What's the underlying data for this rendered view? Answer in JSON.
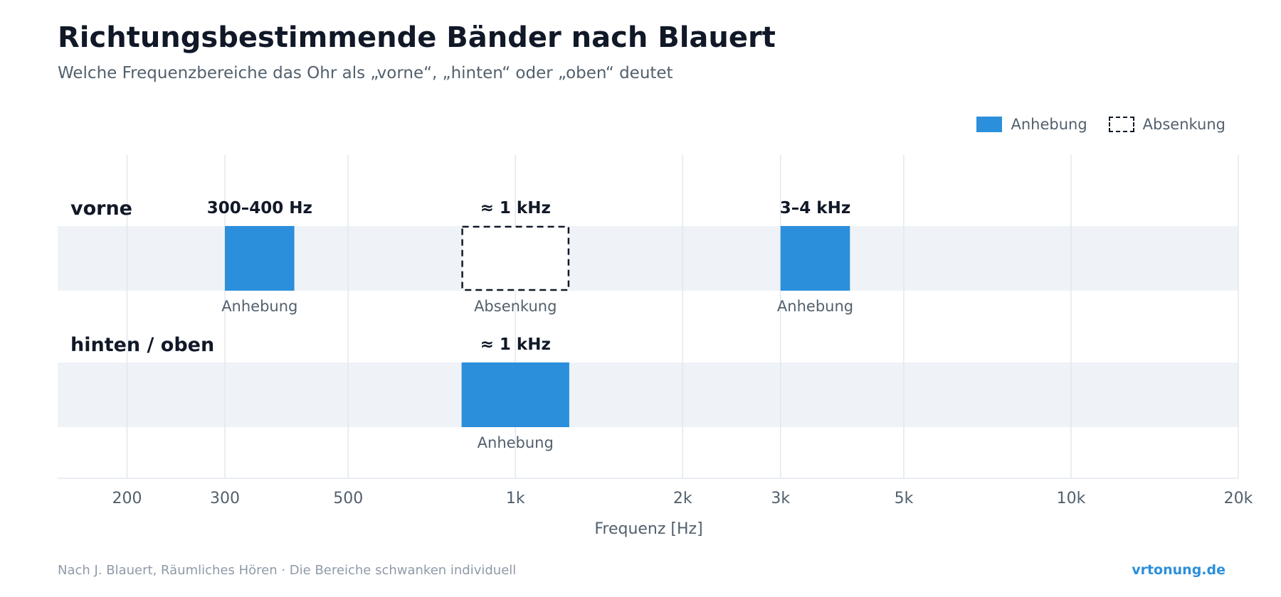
{
  "title": "Richtungsbestimmende Bänder nach Blauert",
  "subtitle": "Welche Frequenzbereiche das Ohr als „vorne“, „hinten“ oder „oben“ deutet",
  "legend": {
    "raise": "Anhebung",
    "cut": "Absenkung"
  },
  "footer": {
    "source": "Nach J. Blauert, Räumliches Hören · Die Bereiche schwanken individuell",
    "brand": "vrtonung.de"
  },
  "colors": {
    "raise": "#2b8fdb",
    "row_band": "#eff3f8",
    "grid": "#e2e8f0",
    "text_dark": "#111827",
    "text_muted": "#52606d"
  },
  "chart_data": {
    "type": "bar",
    "orientation": "horizontal-range",
    "xlabel": "Frequenz [Hz]",
    "xscale": "log",
    "xlim": [
      150,
      20000
    ],
    "xticks": [
      200,
      300,
      500,
      1000,
      2000,
      3000,
      5000,
      10000,
      20000
    ],
    "xtick_labels": [
      "200",
      "300",
      "500",
      "1k",
      "2k",
      "3k",
      "5k",
      "10k",
      "20k"
    ],
    "grid": true,
    "legend_position": "top-right",
    "rows": [
      {
        "label": "vorne",
        "bands": [
          {
            "from": 300,
            "to": 400,
            "kind": "raise",
            "top_label": "300–400 Hz",
            "bottom_label": "Anhebung"
          },
          {
            "from": 800,
            "to": 1250,
            "kind": "cut",
            "top_label": "≈ 1 kHz",
            "bottom_label": "Absenkung"
          },
          {
            "from": 3000,
            "to": 4000,
            "kind": "raise",
            "top_label": "3–4 kHz",
            "bottom_label": "Anhebung"
          }
        ]
      },
      {
        "label": "hinten / oben",
        "bands": [
          {
            "from": 800,
            "to": 1250,
            "kind": "raise",
            "top_label": "≈ 1 kHz",
            "bottom_label": "Anhebung"
          }
        ]
      }
    ]
  }
}
